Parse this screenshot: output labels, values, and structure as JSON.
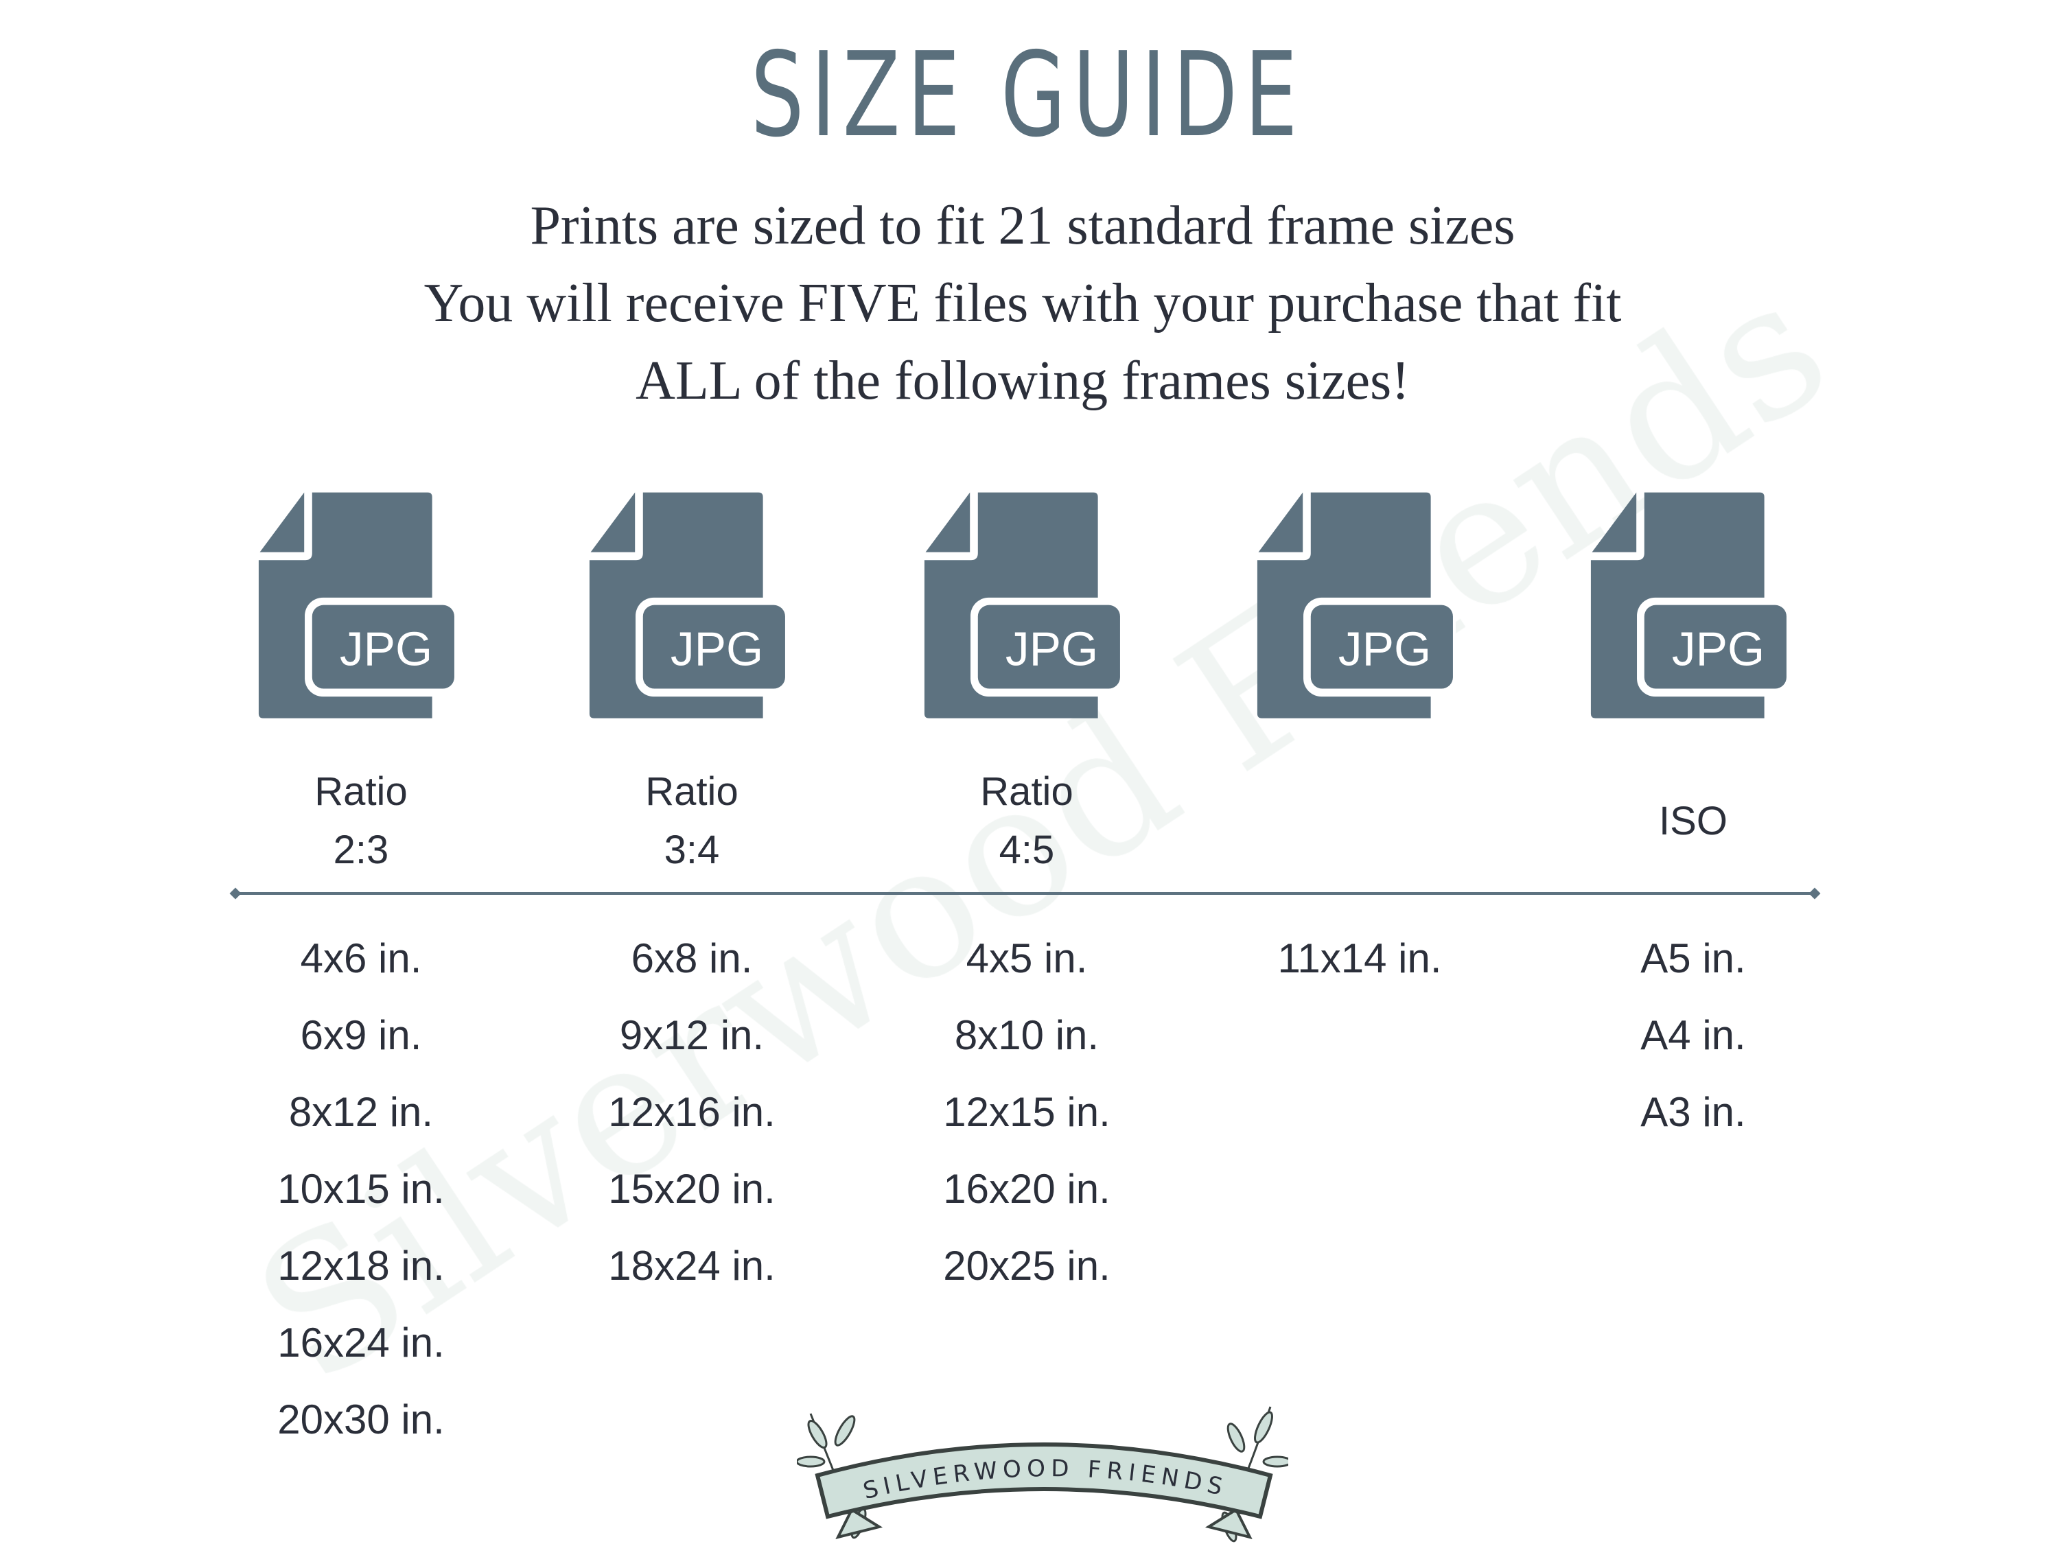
{
  "watermark": "Silverwood Friends",
  "title": "SIZE GUIDE",
  "subtitle_lines": [
    "Prints are sized to fit 21 standard frame sizes",
    "You will receive FIVE files with your purchase that fit",
    "ALL of the following frames sizes!"
  ],
  "icon_label": "JPG",
  "colors": {
    "slate": "#5d7280",
    "text": "#2b2f3a",
    "banner": "#cfe0da"
  },
  "columns": [
    {
      "label_lines": [
        "Ratio",
        "2:3"
      ],
      "sizes": [
        "4x6 in.",
        "6x9 in.",
        "8x12 in.",
        "10x15 in.",
        "12x18 in.",
        "16x24 in.",
        "20x30 in."
      ]
    },
    {
      "label_lines": [
        "Ratio",
        "3:4"
      ],
      "sizes": [
        "6x8 in.",
        "9x12 in.",
        "12x16 in.",
        "15x20 in.",
        "18x24 in."
      ]
    },
    {
      "label_lines": [
        "Ratio",
        "4:5"
      ],
      "sizes": [
        "4x5 in.",
        "8x10 in.",
        "12x15 in.",
        "16x20 in.",
        "20x25 in."
      ]
    },
    {
      "label_lines": [],
      "sizes": [
        "11x14 in."
      ]
    },
    {
      "label_lines": [
        "ISO"
      ],
      "sizes": [
        "A5 in.",
        "A4 in.",
        "A3 in."
      ]
    }
  ],
  "logo_text": "SILVERWOOD FRIENDS"
}
